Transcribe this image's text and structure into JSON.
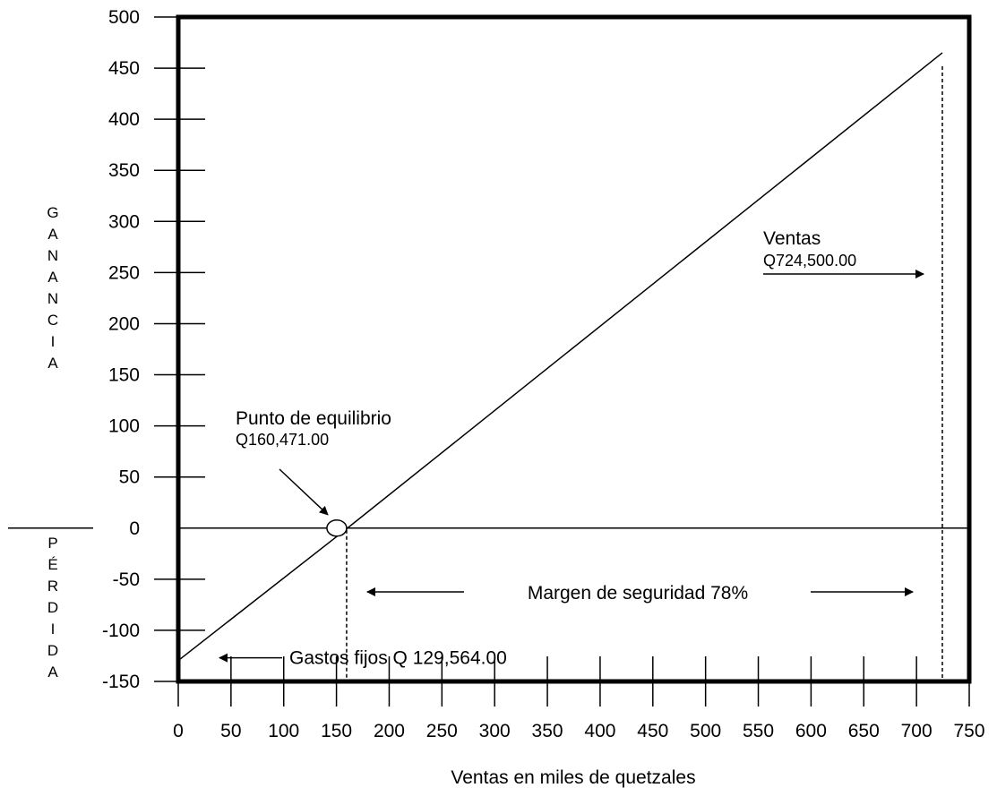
{
  "chart_data": {
    "type": "line",
    "title": "",
    "xlabel": "Ventas en miles de quetzales",
    "ylabel_upper": "GANANCIA",
    "ylabel_lower": "PÉRDIDA",
    "xlim": [
      0,
      750
    ],
    "ylim": [
      -150,
      500
    ],
    "x_ticks": [
      0,
      50,
      100,
      150,
      200,
      250,
      300,
      350,
      400,
      450,
      500,
      550,
      600,
      650,
      700,
      750
    ],
    "y_ticks": [
      500,
      450,
      400,
      350,
      300,
      250,
      200,
      150,
      100,
      50,
      0,
      -50,
      -100,
      -150
    ],
    "grid": false,
    "series": [
      {
        "x": [
          0,
          160.471,
          724.5
        ],
        "y": [
          -129.564,
          0,
          465
        ]
      }
    ],
    "annotations": {
      "break_even": {
        "label": "Punto de equilibrio",
        "value_label": "Q160,471.00",
        "x": 160.471,
        "y": 0
      },
      "sales": {
        "label": "Ventas",
        "value_label": "Q724,500.00",
        "x": 724.5
      },
      "safety_margin": {
        "label": "Margen de seguridad 78%"
      },
      "fixed_costs": {
        "label": "Gastos fijos Q 129,564.00",
        "y": -129.564
      }
    }
  }
}
